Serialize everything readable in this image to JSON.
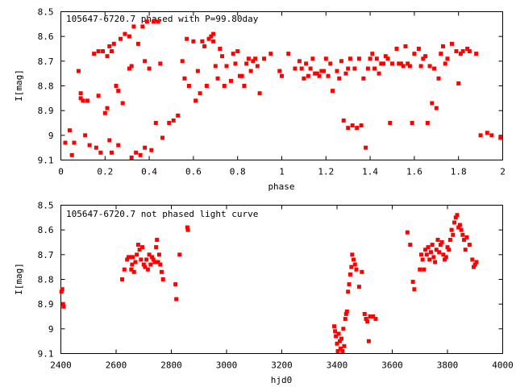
{
  "chart_data": [
    {
      "type": "scatter",
      "title": "105647-6720.7 phased with P=99.80day",
      "xlabel": "phase",
      "ylabel": "I[mag]",
      "xlim": [
        0,
        2
      ],
      "ylim": [
        9.1,
        8.5
      ],
      "y_inverted": true,
      "xticks": [
        0,
        0.2,
        0.4,
        0.6,
        0.8,
        1,
        1.2,
        1.4,
        1.6,
        1.8,
        2
      ],
      "xtick_labels": [
        "0",
        "0.2",
        "0.4",
        "0.6",
        "0.8",
        "1",
        "1.2",
        "1.4",
        "1.6",
        "1.8",
        "2"
      ],
      "yticks": [
        8.5,
        8.6,
        8.7,
        8.8,
        8.9,
        9.0,
        9.1
      ],
      "ytick_labels": [
        "8.5",
        "8.6",
        "8.7",
        "8.8",
        "8.9",
        "9",
        "9.1"
      ],
      "marker_color": "#ff0000",
      "grid": false,
      "points": [
        [
          0.02,
          9.03
        ],
        [
          0.04,
          8.98
        ],
        [
          0.05,
          9.08
        ],
        [
          0.06,
          9.03
        ],
        [
          0.08,
          8.74
        ],
        [
          0.09,
          8.83
        ],
        [
          0.09,
          8.85
        ],
        [
          0.1,
          8.86
        ],
        [
          0.11,
          9.0
        ],
        [
          0.12,
          8.86
        ],
        [
          0.13,
          9.04
        ],
        [
          0.15,
          8.67
        ],
        [
          0.16,
          9.05
        ],
        [
          0.17,
          8.66
        ],
        [
          0.17,
          8.84
        ],
        [
          0.18,
          9.07
        ],
        [
          0.19,
          8.66
        ],
        [
          0.2,
          8.91
        ],
        [
          0.21,
          8.68
        ],
        [
          0.21,
          8.89
        ],
        [
          0.22,
          9.02
        ],
        [
          0.22,
          8.64
        ],
        [
          0.23,
          8.66
        ],
        [
          0.23,
          9.07
        ],
        [
          0.24,
          8.63
        ],
        [
          0.25,
          8.8
        ],
        [
          0.26,
          8.82
        ],
        [
          0.26,
          9.04
        ],
        [
          0.27,
          8.61
        ],
        [
          0.28,
          8.87
        ],
        [
          0.29,
          8.59
        ],
        [
          0.31,
          8.6
        ],
        [
          0.31,
          8.73
        ],
        [
          0.32,
          8.72
        ],
        [
          0.32,
          9.09
        ],
        [
          0.33,
          8.56
        ],
        [
          0.34,
          9.07
        ],
        [
          0.35,
          8.63
        ],
        [
          0.36,
          9.08
        ],
        [
          0.37,
          8.56
        ],
        [
          0.38,
          8.7
        ],
        [
          0.38,
          9.05
        ],
        [
          0.39,
          8.54
        ],
        [
          0.4,
          8.73
        ],
        [
          0.41,
          9.06
        ],
        [
          0.42,
          8.54
        ],
        [
          0.43,
          8.95
        ],
        [
          0.44,
          8.54
        ],
        [
          0.45,
          8.71
        ],
        [
          0.46,
          9.01
        ],
        [
          0.49,
          8.95
        ],
        [
          0.51,
          8.94
        ],
        [
          0.53,
          8.92
        ],
        [
          0.55,
          8.7
        ],
        [
          0.56,
          8.77
        ],
        [
          0.57,
          8.61
        ],
        [
          0.58,
          8.8
        ],
        [
          0.6,
          8.62
        ],
        [
          0.61,
          8.86
        ],
        [
          0.62,
          8.74
        ],
        [
          0.63,
          8.83
        ],
        [
          0.64,
          8.62
        ],
        [
          0.65,
          8.64
        ],
        [
          0.66,
          8.8
        ],
        [
          0.67,
          8.61
        ],
        [
          0.68,
          8.6
        ],
        [
          0.69,
          8.62
        ],
        [
          0.69,
          8.59
        ],
        [
          0.7,
          8.72
        ],
        [
          0.71,
          8.77
        ],
        [
          0.72,
          8.65
        ],
        [
          0.73,
          8.68
        ],
        [
          0.74,
          8.8
        ],
        [
          0.75,
          8.72
        ],
        [
          0.77,
          8.78
        ],
        [
          0.78,
          8.67
        ],
        [
          0.79,
          8.71
        ],
        [
          0.8,
          8.66
        ],
        [
          0.81,
          8.76
        ],
        [
          0.82,
          8.76
        ],
        [
          0.83,
          8.8
        ],
        [
          0.84,
          8.71
        ],
        [
          0.85,
          8.69
        ],
        [
          0.86,
          8.74
        ],
        [
          0.87,
          8.7
        ],
        [
          0.88,
          8.69
        ],
        [
          0.89,
          8.72
        ],
        [
          0.9,
          8.83
        ],
        [
          0.92,
          8.69
        ],
        [
          0.95,
          8.67
        ],
        [
          0.99,
          8.74
        ],
        [
          1.0,
          8.76
        ],
        [
          1.03,
          8.67
        ],
        [
          1.06,
          8.73
        ],
        [
          1.08,
          8.7
        ],
        [
          1.09,
          8.73
        ],
        [
          1.1,
          8.77
        ],
        [
          1.11,
          8.71
        ],
        [
          1.12,
          8.76
        ],
        [
          1.13,
          8.73
        ],
        [
          1.14,
          8.69
        ],
        [
          1.15,
          8.75
        ],
        [
          1.16,
          8.75
        ],
        [
          1.17,
          8.76
        ],
        [
          1.18,
          8.74
        ],
        [
          1.19,
          8.74
        ],
        [
          1.2,
          8.69
        ],
        [
          1.21,
          8.76
        ],
        [
          1.22,
          8.71
        ],
        [
          1.23,
          8.82
        ],
        [
          1.25,
          8.74
        ],
        [
          1.26,
          8.77
        ],
        [
          1.27,
          8.7
        ],
        [
          1.28,
          8.94
        ],
        [
          1.29,
          8.75
        ],
        [
          1.3,
          8.73
        ],
        [
          1.3,
          8.97
        ],
        [
          1.31,
          8.69
        ],
        [
          1.32,
          8.96
        ],
        [
          1.33,
          8.73
        ],
        [
          1.34,
          8.97
        ],
        [
          1.35,
          8.69
        ],
        [
          1.36,
          8.96
        ],
        [
          1.37,
          8.77
        ],
        [
          1.38,
          9.05
        ],
        [
          1.39,
          8.73
        ],
        [
          1.4,
          8.69
        ],
        [
          1.41,
          8.67
        ],
        [
          1.42,
          8.73
        ],
        [
          1.43,
          8.69
        ],
        [
          1.44,
          8.75
        ],
        [
          1.45,
          8.71
        ],
        [
          1.46,
          8.71
        ],
        [
          1.47,
          8.68
        ],
        [
          1.48,
          8.69
        ],
        [
          1.49,
          8.95
        ],
        [
          1.5,
          8.71
        ],
        [
          1.52,
          8.65
        ],
        [
          1.53,
          8.71
        ],
        [
          1.54,
          8.71
        ],
        [
          1.55,
          8.72
        ],
        [
          1.56,
          8.64
        ],
        [
          1.57,
          8.71
        ],
        [
          1.58,
          8.72
        ],
        [
          1.59,
          8.95
        ],
        [
          1.6,
          8.67
        ],
        [
          1.62,
          8.65
        ],
        [
          1.63,
          8.72
        ],
        [
          1.64,
          8.69
        ],
        [
          1.65,
          8.68
        ],
        [
          1.66,
          8.95
        ],
        [
          1.67,
          8.72
        ],
        [
          1.68,
          8.87
        ],
        [
          1.69,
          8.73
        ],
        [
          1.7,
          8.89
        ],
        [
          1.71,
          8.77
        ],
        [
          1.72,
          8.67
        ],
        [
          1.73,
          8.64
        ],
        [
          1.74,
          8.71
        ],
        [
          1.75,
          8.69
        ],
        [
          1.77,
          8.63
        ],
        [
          1.79,
          8.66
        ],
        [
          1.8,
          8.79
        ],
        [
          1.81,
          8.67
        ],
        [
          1.82,
          8.66
        ],
        [
          1.84,
          8.65
        ],
        [
          1.85,
          8.66
        ],
        [
          1.88,
          8.67
        ],
        [
          1.9,
          9.0
        ],
        [
          1.93,
          8.99
        ],
        [
          1.95,
          9.0
        ],
        [
          1.99,
          9.01
        ]
      ]
    },
    {
      "type": "scatter",
      "title": "105647-6720.7 not phased light curve",
      "xlabel": "hjd0",
      "ylabel": "I[mag]",
      "xlim": [
        2400,
        4000
      ],
      "ylim": [
        9.1,
        8.5
      ],
      "y_inverted": true,
      "xticks": [
        2400,
        2600,
        2800,
        3000,
        3200,
        3400,
        3600,
        3800,
        4000
      ],
      "xtick_labels": [
        "2400",
        "2600",
        "2800",
        "3000",
        "3200",
        "3400",
        "3600",
        "3800",
        "4000"
      ],
      "yticks": [
        8.5,
        8.6,
        8.7,
        8.8,
        8.9,
        9.0,
        9.1
      ],
      "ytick_labels": [
        "8.5",
        "8.6",
        "8.7",
        "8.8",
        "8.9",
        "9",
        "9.1"
      ],
      "marker_color": "#ff0000",
      "grid": false,
      "points": [
        [
          2402,
          8.85
        ],
        [
          2405,
          8.84
        ],
        [
          2408,
          8.9
        ],
        [
          2410,
          8.91
        ],
        [
          2622,
          8.8
        ],
        [
          2630,
          8.76
        ],
        [
          2640,
          8.72
        ],
        [
          2645,
          8.71
        ],
        [
          2650,
          8.71
        ],
        [
          2655,
          8.76
        ],
        [
          2658,
          8.74
        ],
        [
          2660,
          8.71
        ],
        [
          2665,
          8.77
        ],
        [
          2670,
          8.73
        ],
        [
          2675,
          8.7
        ],
        [
          2680,
          8.66
        ],
        [
          2685,
          8.68
        ],
        [
          2690,
          8.72
        ],
        [
          2695,
          8.67
        ],
        [
          2700,
          8.74
        ],
        [
          2705,
          8.75
        ],
        [
          2710,
          8.72
        ],
        [
          2715,
          8.76
        ],
        [
          2720,
          8.7
        ],
        [
          2725,
          8.74
        ],
        [
          2730,
          8.71
        ],
        [
          2735,
          8.72
        ],
        [
          2740,
          8.73
        ],
        [
          2745,
          8.67
        ],
        [
          2748,
          8.64
        ],
        [
          2752,
          8.73
        ],
        [
          2756,
          8.7
        ],
        [
          2760,
          8.74
        ],
        [
          2765,
          8.77
        ],
        [
          2770,
          8.8
        ],
        [
          2815,
          8.82
        ],
        [
          2818,
          8.88
        ],
        [
          2830,
          8.7
        ],
        [
          2858,
          8.59
        ],
        [
          2860,
          8.6
        ],
        [
          3390,
          8.99
        ],
        [
          3393,
          9.01
        ],
        [
          3396,
          9.03
        ],
        [
          3400,
          9.06
        ],
        [
          3403,
          9.09
        ],
        [
          3406,
          9.02
        ],
        [
          3410,
          9.05
        ],
        [
          3413,
          9.08
        ],
        [
          3416,
          9.04
        ],
        [
          3420,
          9.09
        ],
        [
          3423,
          9.0
        ],
        [
          3426,
          9.07
        ],
        [
          3430,
          8.96
        ],
        [
          3433,
          8.94
        ],
        [
          3436,
          8.93
        ],
        [
          3440,
          8.85
        ],
        [
          3444,
          8.82
        ],
        [
          3448,
          8.78
        ],
        [
          3452,
          8.75
        ],
        [
          3455,
          8.7
        ],
        [
          3460,
          8.72
        ],
        [
          3465,
          8.74
        ],
        [
          3470,
          8.76
        ],
        [
          3480,
          8.83
        ],
        [
          3490,
          8.77
        ],
        [
          3500,
          8.94
        ],
        [
          3505,
          8.96
        ],
        [
          3510,
          8.97
        ],
        [
          3515,
          9.05
        ],
        [
          3520,
          8.95
        ],
        [
          3530,
          8.95
        ],
        [
          3540,
          8.96
        ],
        [
          3655,
          8.61
        ],
        [
          3665,
          8.66
        ],
        [
          3675,
          8.81
        ],
        [
          3680,
          8.84
        ],
        [
          3700,
          8.76
        ],
        [
          3705,
          8.7
        ],
        [
          3710,
          8.72
        ],
        [
          3715,
          8.76
        ],
        [
          3720,
          8.68
        ],
        [
          3725,
          8.7
        ],
        [
          3730,
          8.67
        ],
        [
          3735,
          8.72
        ],
        [
          3740,
          8.69
        ],
        [
          3745,
          8.66
        ],
        [
          3750,
          8.71
        ],
        [
          3755,
          8.73
        ],
        [
          3760,
          8.68
        ],
        [
          3765,
          8.64
        ],
        [
          3770,
          8.69
        ],
        [
          3775,
          8.66
        ],
        [
          3780,
          8.65
        ],
        [
          3785,
          8.7
        ],
        [
          3790,
          8.72
        ],
        [
          3795,
          8.71
        ],
        [
          3800,
          8.67
        ],
        [
          3805,
          8.68
        ],
        [
          3810,
          8.64
        ],
        [
          3815,
          8.6
        ],
        [
          3820,
          8.62
        ],
        [
          3825,
          8.57
        ],
        [
          3830,
          8.55
        ],
        [
          3835,
          8.54
        ],
        [
          3840,
          8.59
        ],
        [
          3845,
          8.58
        ],
        [
          3850,
          8.6
        ],
        [
          3855,
          8.62
        ],
        [
          3860,
          8.64
        ],
        [
          3865,
          8.68
        ],
        [
          3870,
          8.63
        ],
        [
          3880,
          8.66
        ],
        [
          3890,
          8.72
        ],
        [
          3895,
          8.75
        ],
        [
          3900,
          8.74
        ],
        [
          3905,
          8.73
        ]
      ]
    }
  ]
}
